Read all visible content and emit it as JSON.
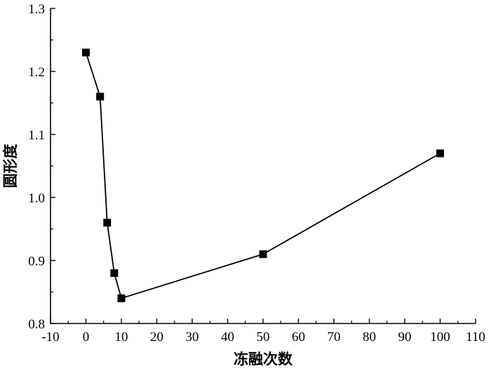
{
  "chart_data": {
    "type": "line",
    "title": "",
    "xlabel": "冻融次数",
    "ylabel": "圆形度",
    "xlim": [
      -10,
      110
    ],
    "ylim": [
      0.8,
      1.3
    ],
    "xticks": [
      -10,
      0,
      10,
      20,
      30,
      40,
      50,
      60,
      70,
      80,
      90,
      100,
      110
    ],
    "yticks": [
      0.8,
      0.9,
      1.0,
      1.1,
      1.2,
      1.3
    ],
    "grid": false,
    "legend": "none",
    "marker": "square",
    "color": "#000000",
    "series": [
      {
        "x": [
          0,
          4,
          6,
          8,
          10,
          50,
          100
        ],
        "y": [
          1.23,
          1.16,
          0.96,
          0.88,
          0.84,
          0.91,
          1.07
        ]
      }
    ]
  }
}
